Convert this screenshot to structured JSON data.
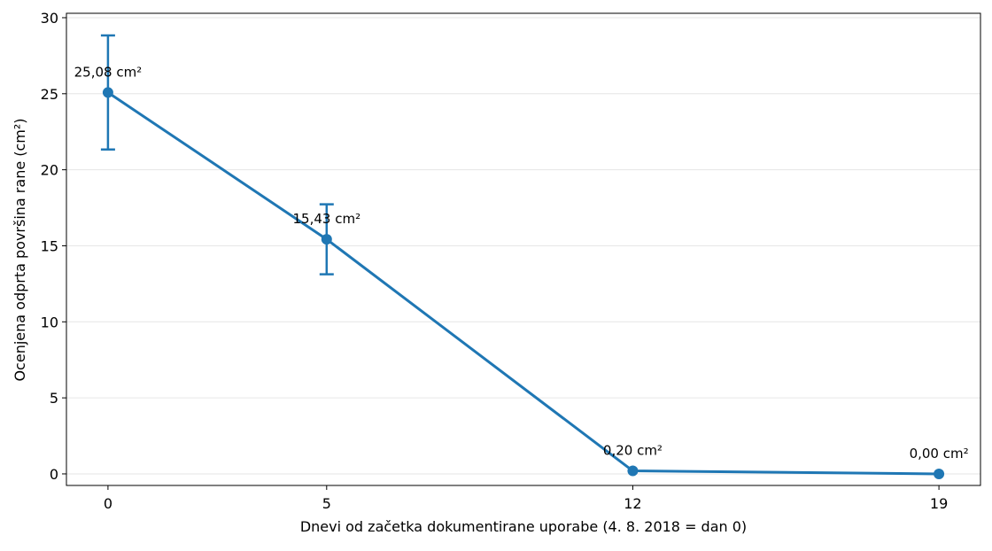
{
  "chart_data": {
    "type": "line",
    "x_label": "Dnevi od začetka dokumentirane uporabe (4. 8. 2018 = dan 0)",
    "y_label": "Ocenjena odprta površina rane (cm²)",
    "x": [
      0,
      5,
      12,
      19
    ],
    "series": [
      {
        "name": "Ocenjena odprta površina rane",
        "color": "#1f77b4",
        "values": [
          25.08,
          15.43,
          0.2,
          0.0
        ],
        "value_labels": [
          "25,08 cm²",
          "15,43 cm²",
          "0,20 cm²",
          "0,00 cm²"
        ],
        "errors": [
          3.75,
          2.3,
          null,
          null
        ]
      }
    ],
    "xlim": [
      -0.95,
      19.95
    ],
    "ylim": [
      -0.76,
      30.29
    ],
    "xticks": [
      0,
      5,
      12,
      19
    ],
    "yticks": [
      0,
      5,
      10,
      15,
      20,
      25,
      30
    ],
    "grid": true
  }
}
